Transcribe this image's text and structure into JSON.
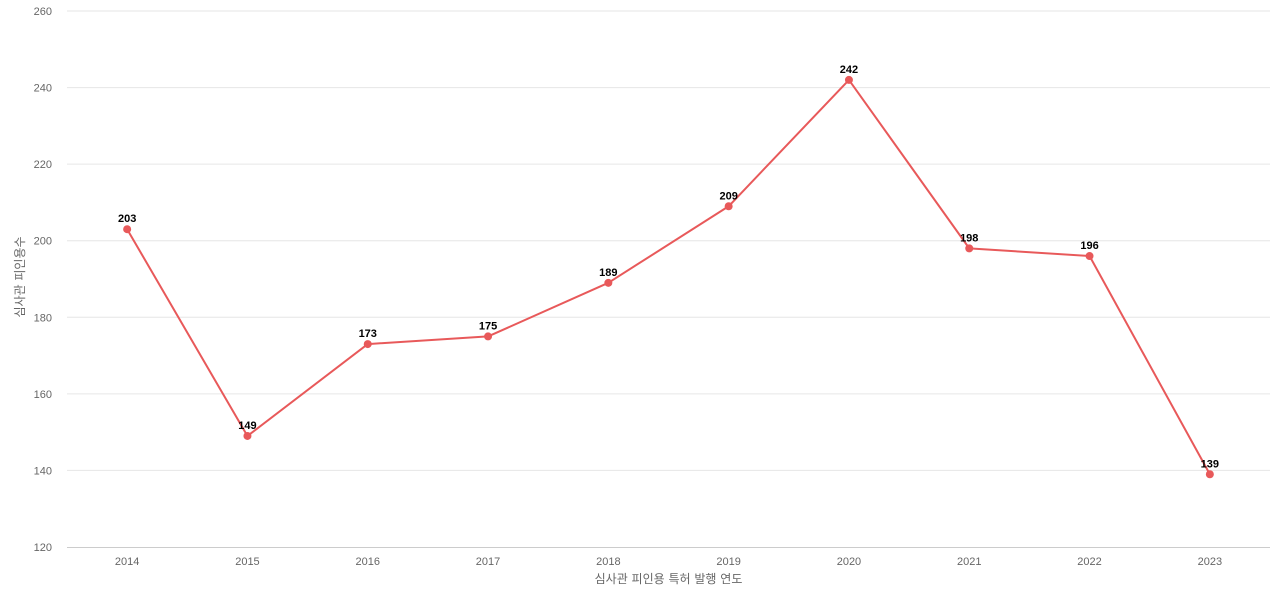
{
  "chart_data": {
    "type": "line",
    "title": "",
    "xlabel": "심사관 피인용 특허 발행 연도",
    "ylabel": "심사관 피인용수",
    "categories": [
      "2014",
      "2015",
      "2016",
      "2017",
      "2018",
      "2019",
      "2020",
      "2021",
      "2022",
      "2023"
    ],
    "series": [
      {
        "values": [
          203,
          149,
          173,
          175,
          189,
          209,
          242,
          198,
          196,
          139
        ],
        "color": "#e8595a"
      }
    ],
    "ylim": [
      120,
      260
    ],
    "yticks": [
      120,
      140,
      160,
      180,
      200,
      220,
      240,
      260
    ],
    "grid": true,
    "data_labels": true
  }
}
